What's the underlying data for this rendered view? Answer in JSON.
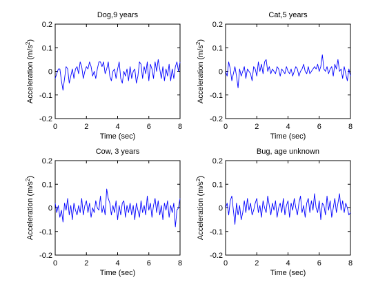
{
  "chart_data": [
    {
      "type": "line",
      "title": "Dog,9 years",
      "xlabel": "Time (sec)",
      "ylabel_base": "Acceleration (m/s",
      "ylabel_sup": "2",
      "ylabel_close": ")",
      "xlim": [
        0,
        8
      ],
      "ylim": [
        -0.2,
        0.2
      ],
      "xticks": [
        0,
        2,
        4,
        6,
        8
      ],
      "yticks": [
        -0.2,
        -0.1,
        0,
        0.1,
        0.2
      ],
      "xtick_labels": [
        "0",
        "2",
        "4",
        "6",
        "8"
      ],
      "ytick_labels": [
        "-0.2",
        "-0.1",
        "0",
        "0.1",
        "0.2"
      ],
      "grid": false,
      "line_color": "#0000ff",
      "series": [
        {
          "x": [
            0,
            0.1,
            0.2,
            0.3,
            0.4,
            0.5,
            0.6,
            0.7,
            0.8,
            0.9,
            1.0,
            1.1,
            1.2,
            1.3,
            1.4,
            1.5,
            1.6,
            1.7,
            1.8,
            1.9,
            2.0,
            2.1,
            2.2,
            2.3,
            2.4,
            2.5,
            2.6,
            2.7,
            2.8,
            2.9,
            3.0,
            3.1,
            3.2,
            3.3,
            3.4,
            3.5,
            3.6,
            3.7,
            3.8,
            3.9,
            4.0,
            4.1,
            4.2,
            4.3,
            4.4,
            4.5,
            4.6,
            4.7,
            4.8,
            4.9,
            5.0,
            5.1,
            5.2,
            5.3,
            5.4,
            5.5,
            5.6,
            5.7,
            5.8,
            5.9,
            6.0,
            6.1,
            6.2,
            6.3,
            6.4,
            6.5,
            6.6,
            6.7,
            6.8,
            6.9,
            7.0,
            7.1,
            7.2,
            7.3,
            7.4,
            7.5,
            7.6,
            7.7,
            7.8,
            7.9,
            8.0
          ],
          "y": [
            -0.03,
            -0.01,
            0.01,
            0.01,
            -0.04,
            -0.08,
            -0.03,
            0.02,
            0.01,
            -0.05,
            -0.02,
            0.01,
            -0.03,
            0.01,
            0.02,
            -0.01,
            0.04,
            0.02,
            -0.03,
            0.0,
            0.02,
            0.01,
            0.04,
            0.02,
            -0.02,
            0.0,
            -0.03,
            0.01,
            0.04,
            0.04,
            0.02,
            0.04,
            -0.01,
            0.01,
            0.04,
            -0.02,
            -0.04,
            0.0,
            0.01,
            -0.03,
            0.01,
            0.04,
            -0.03,
            -0.05,
            0.0,
            -0.02,
            0.01,
            -0.04,
            0.02,
            -0.03,
            0.0,
            0.01,
            -0.05,
            -0.02,
            0.04,
            0.03,
            -0.03,
            0.02,
            -0.01,
            0.04,
            -0.04,
            0.03,
            0.01,
            -0.03,
            0.04,
            0.0,
            0.05,
            0.01,
            -0.03,
            0.02,
            -0.04,
            0.01,
            -0.02,
            0.03,
            -0.04,
            0.01,
            -0.03,
            0.02,
            0.04,
            0.0,
            0.04
          ]
        }
      ]
    },
    {
      "type": "line",
      "title": "Cat,5 years",
      "xlabel": "Time (sec)",
      "ylabel_base": "Acceleration (m/s",
      "ylabel_sup": "2",
      "ylabel_close": ")",
      "xlim": [
        0,
        8
      ],
      "ylim": [
        -0.2,
        0.2
      ],
      "xticks": [
        0,
        2,
        4,
        6,
        8
      ],
      "yticks": [
        -0.2,
        -0.1,
        0,
        0.1,
        0.2
      ],
      "xtick_labels": [
        "0",
        "2",
        "4",
        "6",
        "8"
      ],
      "ytick_labels": [
        "-0.2",
        "-0.1",
        "0",
        "0.1",
        "0.2"
      ],
      "grid": false,
      "line_color": "#0000ff",
      "series": [
        {
          "x": [
            0,
            0.1,
            0.2,
            0.3,
            0.4,
            0.5,
            0.6,
            0.7,
            0.8,
            0.9,
            1.0,
            1.1,
            1.2,
            1.3,
            1.4,
            1.5,
            1.6,
            1.7,
            1.8,
            1.9,
            2.0,
            2.1,
            2.2,
            2.3,
            2.4,
            2.5,
            2.6,
            2.7,
            2.8,
            2.9,
            3.0,
            3.1,
            3.2,
            3.3,
            3.4,
            3.5,
            3.6,
            3.7,
            3.8,
            3.9,
            4.0,
            4.1,
            4.2,
            4.3,
            4.4,
            4.5,
            4.6,
            4.7,
            4.8,
            4.9,
            5.0,
            5.1,
            5.2,
            5.3,
            5.4,
            5.5,
            5.6,
            5.7,
            5.8,
            5.9,
            6.0,
            6.1,
            6.2,
            6.3,
            6.4,
            6.5,
            6.6,
            6.7,
            6.8,
            6.9,
            7.0,
            7.1,
            7.2,
            7.3,
            7.4,
            7.5,
            7.6,
            7.7,
            7.8,
            7.9,
            8.0
          ],
          "y": [
            0.0,
            -0.02,
            0.04,
            0.01,
            -0.04,
            -0.01,
            0.02,
            -0.02,
            -0.07,
            0.01,
            -0.02,
            0.0,
            0.02,
            -0.03,
            0.01,
            0.0,
            -0.01,
            -0.04,
            0.02,
            0.01,
            -0.02,
            0.04,
            0.0,
            0.03,
            -0.01,
            0.04,
            0.05,
            0.0,
            0.02,
            -0.01,
            0.01,
            0.0,
            -0.01,
            0.02,
            0.01,
            -0.02,
            0.01,
            0.0,
            -0.01,
            0.02,
            0.0,
            -0.01,
            0.01,
            -0.02,
            0.0,
            0.02,
            0.01,
            -0.02,
            0.0,
            0.01,
            0.03,
            0.0,
            -0.01,
            0.02,
            -0.01,
            0.0,
            0.01,
            0.02,
            0.01,
            0.03,
            0.0,
            0.02,
            0.07,
            0.01,
            0.0,
            0.02,
            -0.01,
            0.01,
            0.02,
            -0.02,
            0.03,
            0.01,
            0.05,
            0.0,
            0.01,
            -0.03,
            0.02,
            -0.01,
            -0.04,
            0.01,
            -0.02
          ]
        }
      ]
    },
    {
      "type": "line",
      "title": "Cow, 3 years",
      "xlabel": "Time (sec)",
      "ylabel_base": "Acceleration (m/s",
      "ylabel_sup": "2",
      "ylabel_close": ")",
      "xlim": [
        0,
        8
      ],
      "ylim": [
        -0.2,
        0.2
      ],
      "xticks": [
        0,
        2,
        4,
        6,
        8
      ],
      "yticks": [
        -0.2,
        -0.1,
        0,
        0.1,
        0.2
      ],
      "xtick_labels": [
        "0",
        "2",
        "4",
        "6",
        "8"
      ],
      "ytick_labels": [
        "-0.2",
        "-0.1",
        "0",
        "0.1",
        "0.2"
      ],
      "grid": false,
      "line_color": "#0000ff",
      "series": [
        {
          "x": [
            0,
            0.1,
            0.2,
            0.3,
            0.4,
            0.5,
            0.6,
            0.7,
            0.8,
            0.9,
            1.0,
            1.1,
            1.2,
            1.3,
            1.4,
            1.5,
            1.6,
            1.7,
            1.8,
            1.9,
            2.0,
            2.1,
            2.2,
            2.3,
            2.4,
            2.5,
            2.6,
            2.7,
            2.8,
            2.9,
            3.0,
            3.1,
            3.2,
            3.3,
            3.4,
            3.5,
            3.6,
            3.7,
            3.8,
            3.9,
            4.0,
            4.1,
            4.2,
            4.3,
            4.4,
            4.5,
            4.6,
            4.7,
            4.8,
            4.9,
            5.0,
            5.1,
            5.2,
            5.3,
            5.4,
            5.5,
            5.6,
            5.7,
            5.8,
            5.9,
            6.0,
            6.1,
            6.2,
            6.3,
            6.4,
            6.5,
            6.6,
            6.7,
            6.8,
            6.9,
            7.0,
            7.1,
            7.2,
            7.3,
            7.4,
            7.5,
            7.6,
            7.7,
            7.8,
            7.9,
            8.0
          ],
          "y": [
            0.02,
            -0.02,
            0.01,
            -0.04,
            -0.01,
            -0.06,
            0.02,
            -0.01,
            0.04,
            -0.03,
            0.01,
            -0.05,
            0.02,
            -0.01,
            -0.03,
            0.01,
            -0.02,
            0.04,
            -0.03,
            0.01,
            0.03,
            -0.02,
            0.02,
            -0.04,
            0.0,
            -0.02,
            0.03,
            0.0,
            -0.01,
            0.05,
            -0.02,
            0.01,
            -0.03,
            0.08,
            0.04,
            0.02,
            -0.03,
            0.01,
            -0.02,
            0.03,
            -0.05,
            0.01,
            -0.03,
            0.02,
            0.03,
            -0.04,
            0.01,
            -0.02,
            0.02,
            -0.03,
            0.01,
            -0.05,
            0.02,
            -0.01,
            -0.04,
            0.03,
            -0.02,
            0.01,
            -0.03,
            0.05,
            -0.01,
            0.02,
            -0.04,
            0.01,
            0.04,
            -0.02,
            0.03,
            -0.03,
            0.01,
            -0.05,
            0.02,
            -0.01,
            0.03,
            -0.04,
            0.01,
            -0.02,
            0.02,
            -0.08,
            -0.01,
            0.0,
            0.04
          ]
        }
      ]
    },
    {
      "type": "line",
      "title": "Bug, age unknown",
      "xlabel": "Time (sec)",
      "ylabel_base": "Acceleration (m/s",
      "ylabel_sup": "2",
      "ylabel_close": ")",
      "xlim": [
        0,
        8
      ],
      "ylim": [
        -0.2,
        0.2
      ],
      "xticks": [
        0,
        2,
        4,
        6,
        8
      ],
      "yticks": [
        -0.2,
        -0.1,
        0,
        0.1,
        0.2
      ],
      "xtick_labels": [
        "0",
        "2",
        "4",
        "6",
        "8"
      ],
      "ytick_labels": [
        "-0.2",
        "-0.1",
        "0",
        "0.1",
        "0.2"
      ],
      "grid": false,
      "line_color": "#0000ff",
      "series": [
        {
          "x": [
            0,
            0.1,
            0.2,
            0.3,
            0.4,
            0.5,
            0.6,
            0.7,
            0.8,
            0.9,
            1.0,
            1.1,
            1.2,
            1.3,
            1.4,
            1.5,
            1.6,
            1.7,
            1.8,
            1.9,
            2.0,
            2.1,
            2.2,
            2.3,
            2.4,
            2.5,
            2.6,
            2.7,
            2.8,
            2.9,
            3.0,
            3.1,
            3.2,
            3.3,
            3.4,
            3.5,
            3.6,
            3.7,
            3.8,
            3.9,
            4.0,
            4.1,
            4.2,
            4.3,
            4.4,
            4.5,
            4.6,
            4.7,
            4.8,
            4.9,
            5.0,
            5.1,
            5.2,
            5.3,
            5.4,
            5.5,
            5.6,
            5.7,
            5.8,
            5.9,
            6.0,
            6.1,
            6.2,
            6.3,
            6.4,
            6.5,
            6.6,
            6.7,
            6.8,
            6.9,
            7.0,
            7.1,
            7.2,
            7.3,
            7.4,
            7.5,
            7.6,
            7.7,
            7.8,
            7.9,
            8.0
          ],
          "y": [
            0.0,
            0.02,
            -0.03,
            0.03,
            0.05,
            -0.01,
            -0.07,
            0.02,
            -0.03,
            0.01,
            -0.05,
            -0.02,
            0.03,
            -0.02,
            0.04,
            -0.01,
            0.02,
            -0.03,
            -0.01,
            0.02,
            0.04,
            -0.02,
            0.01,
            -0.04,
            0.03,
            0.0,
            -0.02,
            0.05,
            0.01,
            -0.03,
            0.02,
            -0.01,
            0.03,
            -0.04,
            0.0,
            0.02,
            -0.02,
            0.04,
            -0.03,
            0.01,
            0.03,
            -0.04,
            0.02,
            -0.01,
            0.04,
            0.0,
            -0.03,
            0.02,
            0.05,
            -0.02,
            0.01,
            -0.04,
            0.02,
            0.04,
            -0.02,
            0.03,
            -0.01,
            0.06,
            0.0,
            -0.02,
            0.03,
            -0.05,
            0.02,
            0.01,
            -0.03,
            0.05,
            -0.01,
            0.03,
            -0.04,
            0.0,
            0.04,
            -0.02,
            0.02,
            0.06,
            -0.01,
            0.03,
            -0.02,
            0.02,
            0.0,
            -0.03,
            -0.02
          ]
        }
      ]
    }
  ]
}
